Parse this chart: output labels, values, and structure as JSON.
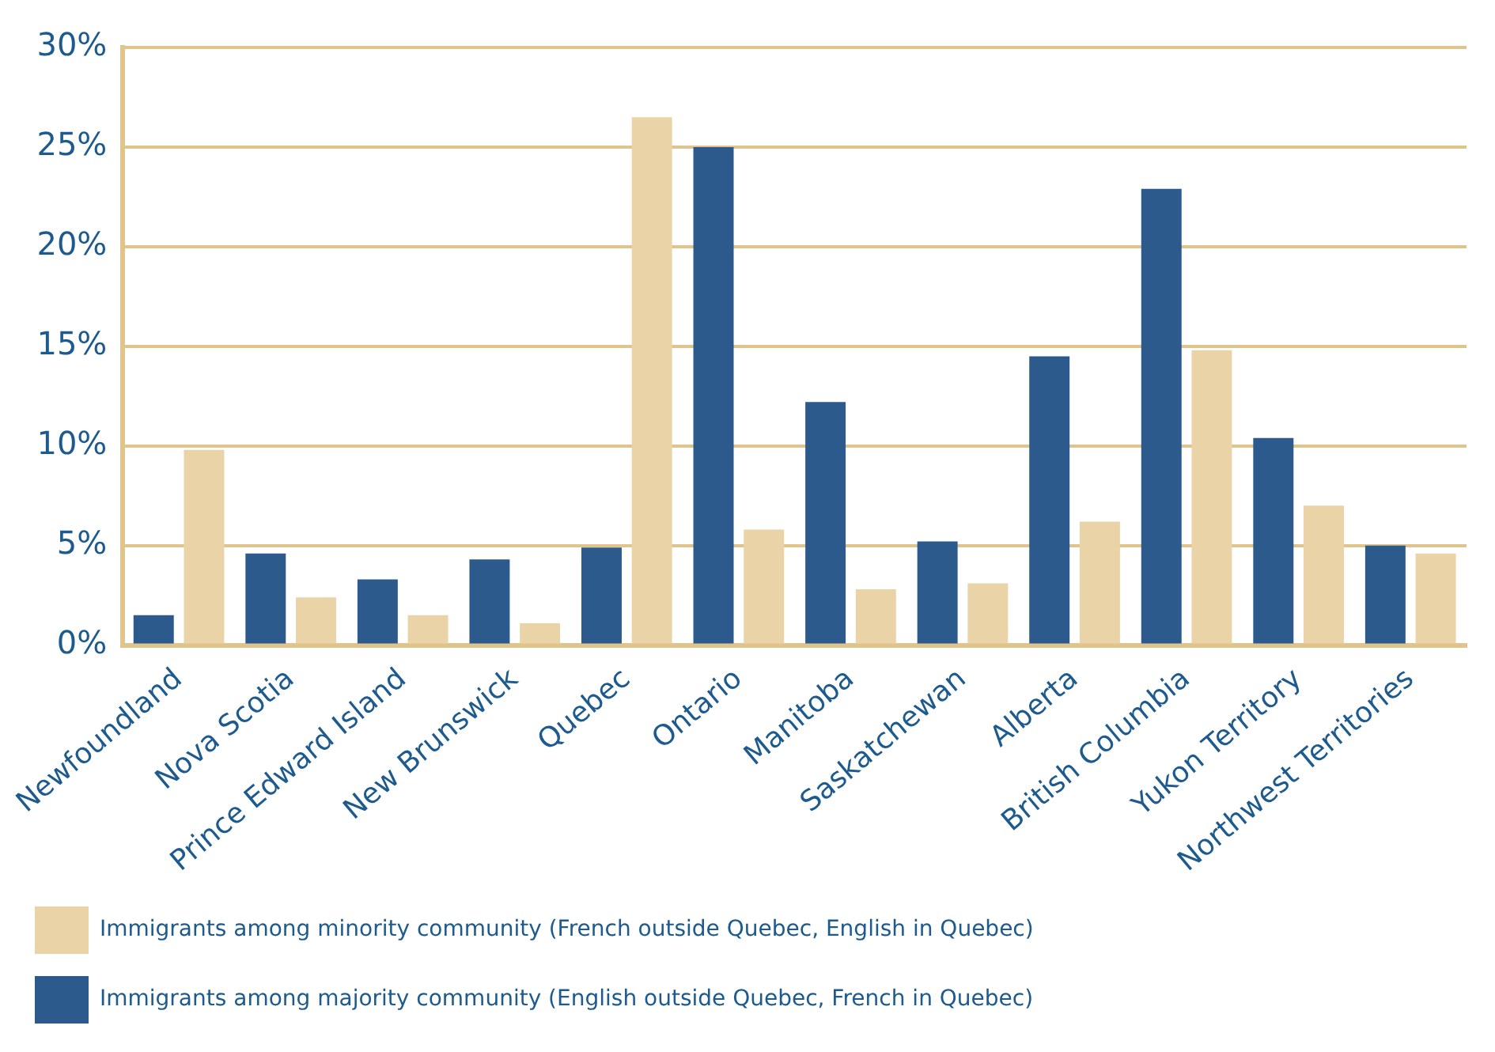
{
  "chart_data": {
    "type": "bar",
    "categories": [
      "Newfoundland",
      "Nova Scotia",
      "Prince Edward Island",
      "New Brunswick",
      "Quebec",
      "Ontario",
      "Manitoba",
      "Saskatchewan",
      "Alberta",
      "British Columbia",
      "Yukon Territory",
      "Northwest Territories"
    ],
    "series": [
      {
        "name": "Immigrants among majority community (English outside Quebec, French in Quebec)",
        "color": "#2c5a8c",
        "values": [
          1.5,
          4.6,
          3.3,
          4.3,
          4.9,
          25.0,
          12.2,
          5.2,
          14.5,
          22.9,
          10.4,
          5.0
        ]
      },
      {
        "name": "Immigrants among minority community (French outside Quebec, English in Quebec)",
        "color": "#ead3a6",
        "values": [
          9.8,
          2.4,
          1.5,
          1.1,
          26.5,
          5.8,
          2.8,
          3.1,
          6.2,
          14.8,
          7.0,
          4.6
        ]
      }
    ],
    "ylim": [
      0,
      30
    ],
    "yticks": [
      {
        "value": 0,
        "label": "0%"
      },
      {
        "value": 5,
        "label": "5%"
      },
      {
        "value": 10,
        "label": "10%"
      },
      {
        "value": 15,
        "label": "15%"
      },
      {
        "value": 20,
        "label": "20%"
      },
      {
        "value": 25,
        "label": "25%"
      },
      {
        "value": 30,
        "label": "30%"
      }
    ],
    "grid": "y",
    "legend": "bottom"
  }
}
